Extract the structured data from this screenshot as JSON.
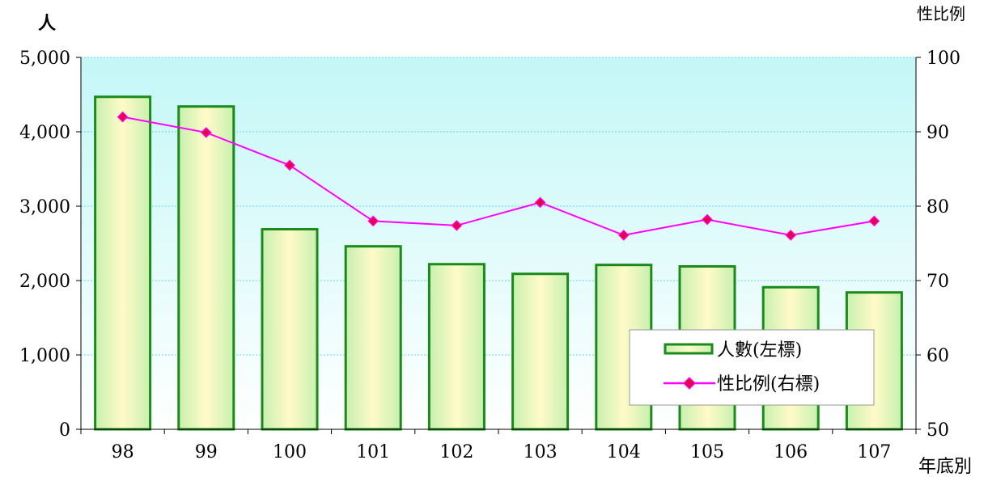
{
  "chart_data": {
    "type": "bar",
    "title": "",
    "categories": [
      "98",
      "99",
      "100",
      "101",
      "102",
      "103",
      "104",
      "105",
      "106",
      "107"
    ],
    "xlabel": "年底別",
    "ylabel": "人",
    "y2label": "性比例",
    "ylim": [
      0,
      5000
    ],
    "y2lim": [
      50,
      100
    ],
    "yticks": [
      "0",
      "1,000",
      "2,000",
      "3,000",
      "4,000",
      "5,000"
    ],
    "y2ticks": [
      "50",
      "60",
      "70",
      "80",
      "90",
      "100"
    ],
    "grid": true,
    "legend_position": "bottom-right",
    "series": [
      {
        "name": "人數(左標)",
        "type": "bar",
        "axis": "left",
        "values": [
          4470,
          4340,
          2690,
          2460,
          2220,
          2090,
          2210,
          2190,
          1910,
          1840
        ]
      },
      {
        "name": "性比例(右標)",
        "type": "line",
        "axis": "right",
        "values": [
          92.0,
          89.9,
          85.5,
          78.0,
          77.4,
          80.5,
          76.1,
          78.2,
          76.1,
          78.0
        ]
      }
    ],
    "colors": {
      "bar_stroke": "#1a8a1a",
      "bar_fill_edge": "#c8f0b0",
      "bar_fill_center": "#fffbc8",
      "line": "#ff00ff",
      "marker": "#e8004a",
      "plot_bg_top": "#c4f7f7",
      "plot_bg_bottom": "#ffffff",
      "grid": "#6fd3ee"
    }
  }
}
